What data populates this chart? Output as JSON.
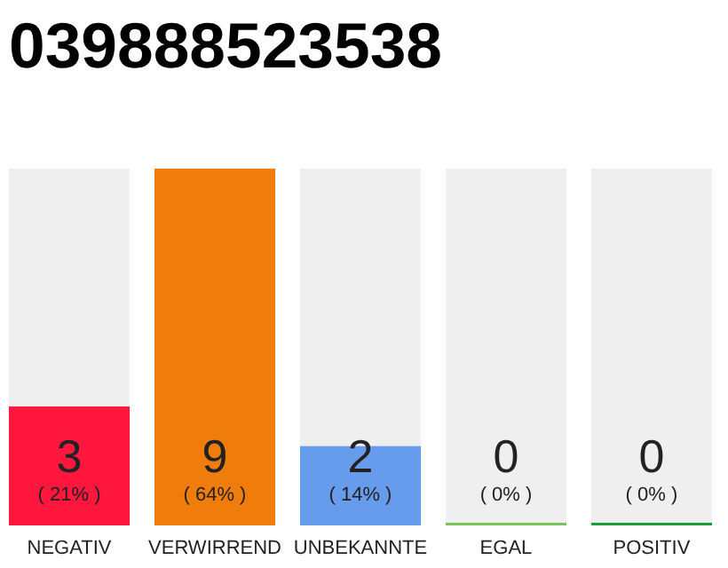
{
  "chart_data": {
    "type": "bar",
    "title": "039888523538",
    "categories": [
      "NEGATIV",
      "VERWIRREND",
      "UNBEKANNTE",
      "EGAL",
      "POSITIV"
    ],
    "values": [
      3,
      9,
      2,
      0,
      0
    ],
    "colors": [
      "#ff173d",
      "#f07c0c",
      "#679ced",
      "#7cc35c",
      "#1a9e3c"
    ],
    "value_labels": [
      "3\n( 21% )",
      "9\n( 64% )",
      "2\n( 14% )",
      "0\n( 0% )",
      "0\n( 0% )"
    ]
  }
}
